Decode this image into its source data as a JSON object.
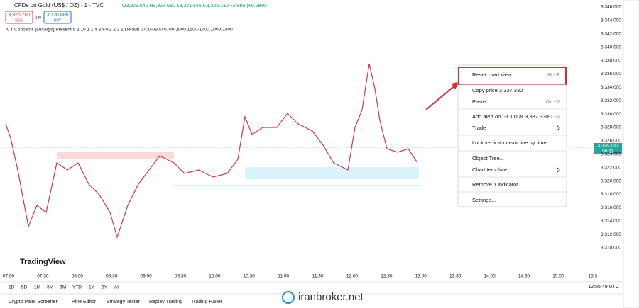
{
  "header": {
    "symbol": "CFDs on Gold (US$ / OZ) · 1 · TVC",
    "ohlc": "O3,323.540 H3,327.030 L3,321.845 C3,326.130 +2.885 (+0.09%)",
    "sell_price": "3,326.700",
    "sell": "SELL",
    "spread": "180",
    "buy_price": "3,326.880",
    "buy": "BUY"
  },
  "indicator": "ICT Concepts [LuxAlgo] Present 5 2 10 1 1 4 2 FVG 2 3 1 Default 0700-0900 0700-1000 1500-1700 1000-1400",
  "price_axis": {
    "ticks": [
      "3,346.000",
      "3,344.000",
      "3,342.000",
      "3,340.000",
      "3,338.000",
      "3,336.000",
      "3,334.000",
      "3,332.000",
      "3,330.000",
      "3,328.000",
      "3,326.000",
      "3,324.000",
      "3,322.000",
      "3,320.000",
      "3,318.000",
      "3,316.000",
      "3,314.000",
      "3,312.000",
      "3,310.000"
    ]
  },
  "price_label": {
    "price": "3,326.130",
    "countdown": "00:11"
  },
  "time_axis": {
    "ticks": [
      "07:00",
      "07:30",
      "08:00",
      "08:30",
      "09:00",
      "09:30",
      "10:00",
      "10:30",
      "11:00",
      "11:30",
      "12:00",
      "12:30",
      "13:00",
      "13:30",
      "14:00",
      "14:30",
      "15:00",
      "15:3"
    ]
  },
  "logo": "TradingView",
  "context_menu": {
    "items": [
      {
        "label": "Reset chart view",
        "shortcut": "Alt + R"
      },
      {
        "label": "Copy price 3,337.330"
      },
      {
        "label": "Paste",
        "shortcut": "Ctrl + V"
      },
      {
        "label": "Add alert on GOLD at 3,337.330...",
        "shortcut": "Alt + A"
      },
      {
        "label": "Trade"
      },
      {
        "label": "Lock vertical cursor line by time"
      },
      {
        "label": "Object Tree..."
      },
      {
        "label": "Chart template"
      },
      {
        "label": "Remove 1 indicator"
      },
      {
        "label": "Settings..."
      }
    ]
  },
  "timeframes": [
    "1D",
    "5D",
    "1M",
    "3M",
    "6M",
    "YTD",
    "1Y",
    "5Y",
    "All"
  ],
  "clock": "12:55:49 UTC",
  "bottom_tabs": [
    "Crypto Pairs Screener",
    "Pine Editor",
    "Strategy Tester",
    "Replay Trading",
    "Trading Panel"
  ],
  "watermark": "iranbroker.net"
}
